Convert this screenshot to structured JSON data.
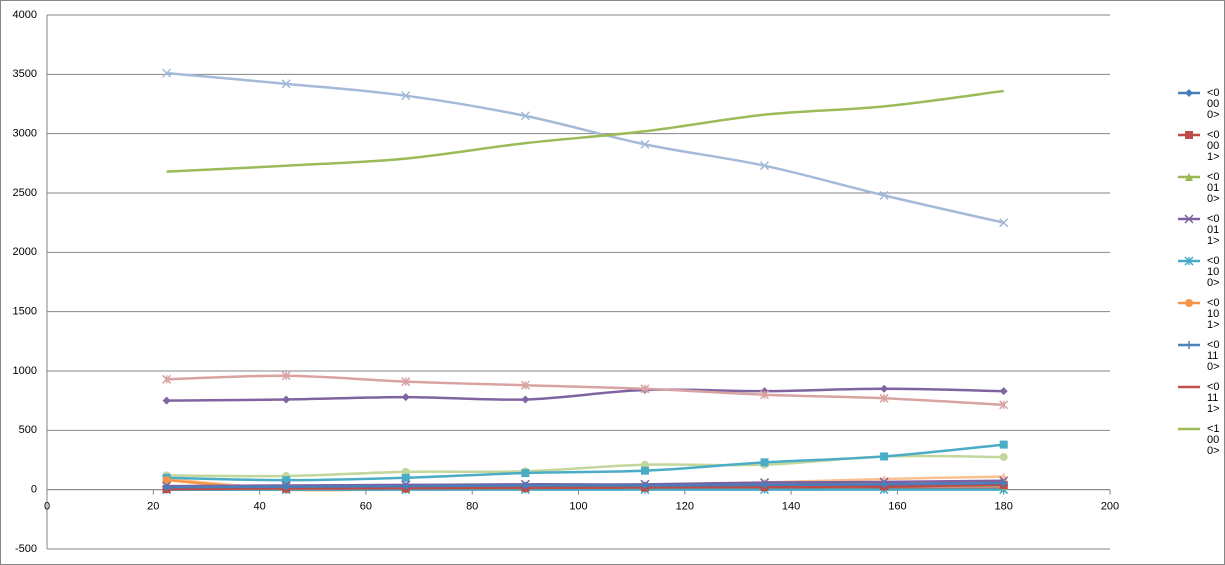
{
  "chart_data": {
    "type": "line",
    "x": [
      22.5,
      45,
      67.5,
      90,
      112.5,
      135,
      157.5,
      180
    ],
    "xlim": [
      0,
      200
    ],
    "xticks": [
      0,
      20,
      40,
      60,
      80,
      100,
      120,
      140,
      160,
      180,
      200
    ],
    "ylim": [
      -500,
      4000
    ],
    "yticks": [
      -500,
      0,
      500,
      1000,
      1500,
      2000,
      2500,
      3000,
      3500,
      4000
    ],
    "grid": true,
    "smooth": true,
    "legend": "right",
    "series": [
      {
        "name": "<0 00 0>",
        "color": "#4a7ebb",
        "marker": "diamond",
        "values": [
          20,
          25,
          30,
          35,
          35,
          40,
          45,
          55
        ]
      },
      {
        "name": "<0 00 1>",
        "color": "#be4b48",
        "marker": "square",
        "values": [
          5,
          10,
          12,
          15,
          18,
          22,
          28,
          40
        ]
      },
      {
        "name": "<0 01 0>",
        "color": "#98b954",
        "marker": "triangle",
        "values": [
          10,
          10,
          15,
          15,
          20,
          25,
          30,
          35
        ]
      },
      {
        "name": "<0 01 1>",
        "color": "#7d60a0",
        "marker": "x",
        "values": [
          30,
          35,
          40,
          45,
          45,
          60,
          65,
          75
        ]
      },
      {
        "name": "<0 10 0>",
        "color": "#46aac5",
        "marker": "asterisk",
        "values": [
          0,
          0,
          0,
          0,
          0,
          0,
          0,
          0
        ]
      },
      {
        "name": "<0 10 1>",
        "color": "#f79646",
        "marker": "circle",
        "values": [
          80,
          0,
          5,
          10,
          15,
          25,
          30,
          40
        ]
      },
      {
        "name": "<0 11 0>",
        "color": "#4f81bd",
        "marker": "plus",
        "values": [
          15,
          15,
          20,
          20,
          25,
          30,
          30,
          35
        ]
      },
      {
        "name": "<0 11 1>",
        "color": "#c0504d",
        "marker": "dash",
        "values": [
          0,
          2,
          3,
          5,
          5,
          5,
          8,
          10
        ]
      },
      {
        "name": "<1 00 0>",
        "color": "#9bbb59",
        "marker": "none",
        "values": [
          2680,
          2730,
          2790,
          2920,
          3020,
          3160,
          3230,
          3360
        ]
      },
      {
        "color": "#a5b9d9",
        "marker": "x",
        "values": [
          3510,
          3420,
          3320,
          3150,
          2910,
          2730,
          2480,
          2250
        ]
      },
      {
        "color": "#d9a3a2",
        "marker": "asterisk",
        "values": [
          930,
          960,
          910,
          880,
          850,
          800,
          770,
          715
        ]
      },
      {
        "color": "#8064a2",
        "marker": "diamond",
        "values": [
          750,
          760,
          780,
          760,
          840,
          830,
          850,
          830
        ]
      },
      {
        "color": "#4bacc6",
        "marker": "square",
        "values": [
          100,
          80,
          100,
          140,
          160,
          230,
          280,
          380
        ]
      },
      {
        "color": "#c3d69b",
        "marker": "circle",
        "values": [
          120,
          115,
          150,
          155,
          210,
          210,
          280,
          275
        ]
      },
      {
        "color": "#fac090",
        "marker": "triangle",
        "values": [
          90,
          10,
          15,
          40,
          40,
          60,
          90,
          110
        ]
      }
    ]
  }
}
